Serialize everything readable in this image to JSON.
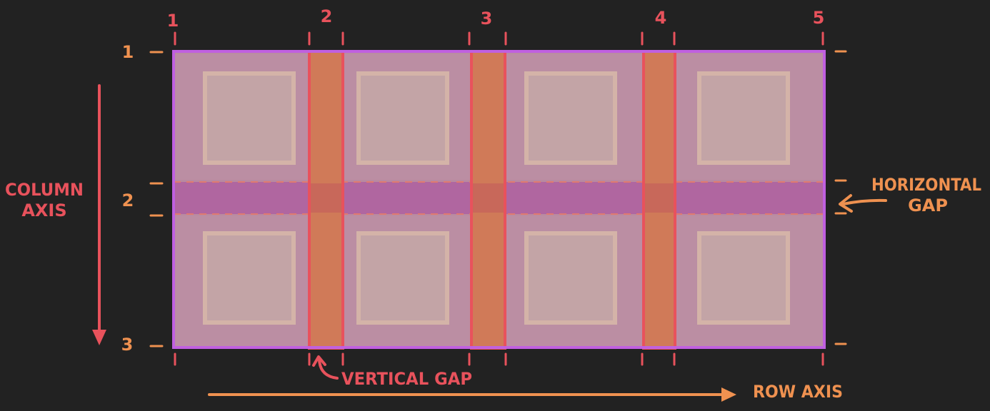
{
  "column_line_numbers": [
    "1",
    "2",
    "3",
    "4",
    "5"
  ],
  "row_line_numbers": [
    "1",
    "2",
    "3"
  ],
  "labels": {
    "column_axis": [
      "COLUMN",
      "AXIS"
    ],
    "horizontal_gap": [
      "HORIZONTAL",
      "GAP"
    ],
    "vertical_gap": "VERTICAL GAP",
    "row_axis": "ROW AXIS"
  },
  "colors": {
    "background": "#222222",
    "grid_outline": "#c060e0",
    "cell_fill": "#b98aa0",
    "item_fill": "#c3a2a4",
    "gap_fill": "#d07a58",
    "gap_outline": "#e8525c",
    "row_gap_fill": "#b066a0",
    "column_number": "#e8525c",
    "row_number": "#ef9150",
    "column_axis_label": "#e8525c",
    "row_axis_label": "#ef9150"
  }
}
